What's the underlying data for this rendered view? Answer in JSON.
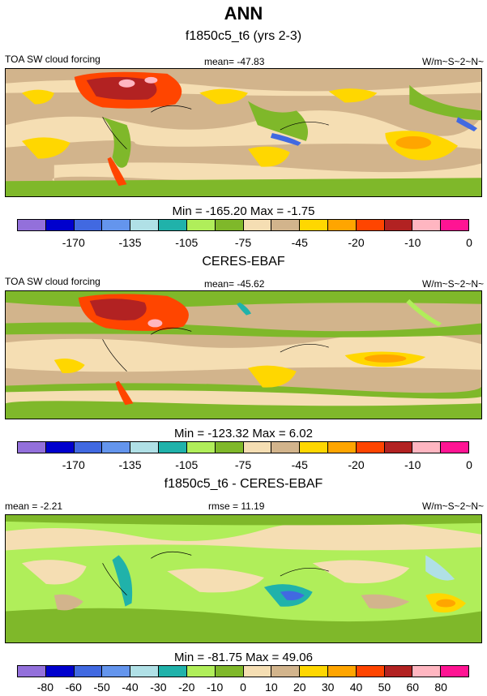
{
  "figure": {
    "title": "ANN",
    "panels": [
      {
        "title": "f1850c5_t6 (yrs 2-3)",
        "left_label": "TOA SW cloud forcing",
        "center_label": "mean= -47.83",
        "right_label": "W/m~S~2~N~",
        "stats": "Min = -165.20 Max =  -1.75",
        "colorbar": {
          "colors": [
            "#9370db",
            "#0000cd",
            "#4169e1",
            "#6495ed",
            "#b0e0e6",
            "#20b2aa",
            "#b0ee5a",
            "#7fb82a",
            "#f5deb3",
            "#d2b48c",
            "#ffd700",
            "#ffa500",
            "#ff4500",
            "#b22222",
            "#ffb6c1",
            "#ff1493"
          ],
          "tick_labels": [
            "-170",
            "-135",
            "-105",
            "-75",
            "-45",
            "-20",
            "-10",
            "0"
          ]
        }
      },
      {
        "title": "CERES-EBAF",
        "left_label": "TOA SW cloud forcing",
        "center_label": "mean= -45.62",
        "right_label": "W/m~S~2~N~",
        "stats": "Min = -123.32 Max =   6.02",
        "colorbar": {
          "colors": [
            "#9370db",
            "#0000cd",
            "#4169e1",
            "#6495ed",
            "#b0e0e6",
            "#20b2aa",
            "#b0ee5a",
            "#7fb82a",
            "#f5deb3",
            "#d2b48c",
            "#ffd700",
            "#ffa500",
            "#ff4500",
            "#b22222",
            "#ffb6c1",
            "#ff1493"
          ],
          "tick_labels": [
            "-170",
            "-135",
            "-105",
            "-75",
            "-45",
            "-20",
            "-10",
            "0"
          ]
        }
      },
      {
        "title": "f1850c5_t6 - CERES-EBAF",
        "left_label": "mean =  -2.21",
        "center_label": "rmse =  11.19",
        "right_label": "W/m~S~2~N~",
        "stats": "Min = -81.75 Max =  49.06",
        "colorbar": {
          "colors": [
            "#9370db",
            "#0000cd",
            "#4169e1",
            "#6495ed",
            "#b0e0e6",
            "#20b2aa",
            "#b0ee5a",
            "#7fb82a",
            "#f5deb3",
            "#d2b48c",
            "#ffd700",
            "#ffa500",
            "#ff4500",
            "#b22222",
            "#ffb6c1",
            "#ff1493"
          ],
          "tick_labels": [
            "-80",
            "-60",
            "-50",
            "-40",
            "-30",
            "-20",
            "-10",
            "0",
            "10",
            "20",
            "30",
            "40",
            "50",
            "60",
            "80"
          ]
        }
      }
    ]
  }
}
